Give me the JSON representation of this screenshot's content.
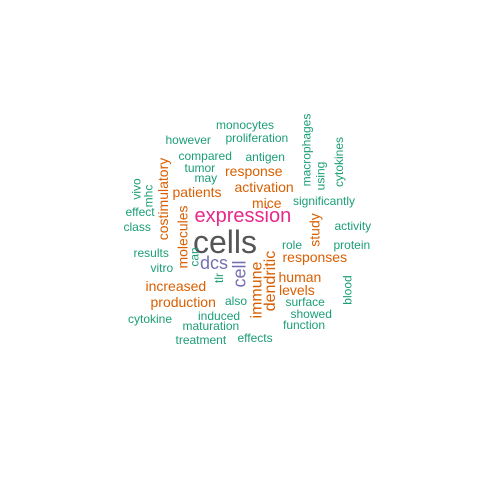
{
  "colors": {
    "teal": "#1b9e77",
    "orange": "#d95f02",
    "purple": "#7570b3",
    "magenta": "#e7298a",
    "gray": "#555555"
  },
  "words": [
    {
      "text": "cells",
      "color": "gray"
    },
    {
      "text": "expression",
      "color": "magenta"
    },
    {
      "text": "dcs",
      "color": "purple"
    },
    {
      "text": "cell",
      "color": "purple"
    },
    {
      "text": "immune",
      "color": "orange"
    },
    {
      "text": "dendritic",
      "color": "orange"
    },
    {
      "text": "mice",
      "color": "orange"
    },
    {
      "text": "activation",
      "color": "orange"
    },
    {
      "text": "response",
      "color": "orange"
    },
    {
      "text": "patients",
      "color": "orange"
    },
    {
      "text": "molecules",
      "color": "orange"
    },
    {
      "text": "costimulatory",
      "color": "orange"
    },
    {
      "text": "increased",
      "color": "orange"
    },
    {
      "text": "production",
      "color": "orange"
    },
    {
      "text": "human",
      "color": "orange"
    },
    {
      "text": "levels",
      "color": "orange"
    },
    {
      "text": "responses",
      "color": "orange"
    },
    {
      "text": "study",
      "color": "orange"
    },
    {
      "text": "monocytes",
      "color": "teal"
    },
    {
      "text": "proliferation",
      "color": "teal"
    },
    {
      "text": "however",
      "color": "teal"
    },
    {
      "text": "macrophages",
      "color": "teal"
    },
    {
      "text": "compared",
      "color": "teal"
    },
    {
      "text": "antigen",
      "color": "teal"
    },
    {
      "text": "cytokines",
      "color": "teal"
    },
    {
      "text": "tumor",
      "color": "teal"
    },
    {
      "text": "may",
      "color": "teal"
    },
    {
      "text": "using",
      "color": "teal"
    },
    {
      "text": "vivo",
      "color": "teal"
    },
    {
      "text": "mhc",
      "color": "teal"
    },
    {
      "text": "significantly",
      "color": "teal"
    },
    {
      "text": "effect",
      "color": "teal"
    },
    {
      "text": "class",
      "color": "teal"
    },
    {
      "text": "activity",
      "color": "teal"
    },
    {
      "text": "role",
      "color": "teal"
    },
    {
      "text": "protein",
      "color": "teal"
    },
    {
      "text": "results",
      "color": "teal"
    },
    {
      "text": "can",
      "color": "teal"
    },
    {
      "text": "vitro",
      "color": "teal"
    },
    {
      "text": "tlr",
      "color": "teal"
    },
    {
      "text": "also",
      "color": "teal"
    },
    {
      "text": "surface",
      "color": "teal"
    },
    {
      "text": "blood",
      "color": "teal"
    },
    {
      "text": "cytokine",
      "color": "teal"
    },
    {
      "text": "induced",
      "color": "teal"
    },
    {
      "text": "showed",
      "color": "teal"
    },
    {
      "text": "maturation",
      "color": "teal"
    },
    {
      "text": "function",
      "color": "teal"
    },
    {
      "text": "treatment",
      "color": "teal"
    },
    {
      "text": "effects",
      "color": "teal"
    }
  ]
}
